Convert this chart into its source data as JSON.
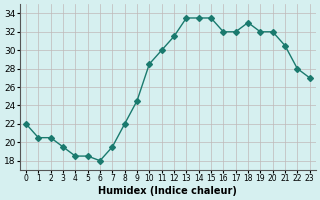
{
  "x": [
    0,
    1,
    2,
    3,
    4,
    5,
    6,
    7,
    8,
    9,
    10,
    11,
    12,
    13,
    14,
    15,
    16,
    17,
    18,
    19,
    20,
    21,
    22,
    23
  ],
  "y": [
    22,
    20.5,
    20.5,
    19.5,
    18.5,
    18.5,
    18,
    19.5,
    22,
    24.5,
    28.5,
    30,
    31.5,
    33.5,
    33.5,
    33.5,
    32,
    32,
    33,
    32,
    32,
    30.5,
    28,
    27
  ],
  "line_color": "#1a7a6e",
  "marker": "D",
  "marker_size": 3,
  "bg_color": "#d6f0f0",
  "grid_color": "#c0b8b8",
  "xlabel": "Humidex (Indice chaleur)",
  "title": "",
  "xlim": [
    -0.5,
    23.5
  ],
  "ylim": [
    17,
    35
  ],
  "yticks": [
    18,
    20,
    22,
    24,
    26,
    28,
    30,
    32,
    34
  ],
  "xtick_labels": [
    "0",
    "1",
    "2",
    "3",
    "4",
    "5",
    "6",
    "7",
    "8",
    "9",
    "10",
    "11",
    "12",
    "13",
    "14",
    "15",
    "16",
    "17",
    "18",
    "19",
    "20",
    "21",
    "22",
    "23"
  ]
}
